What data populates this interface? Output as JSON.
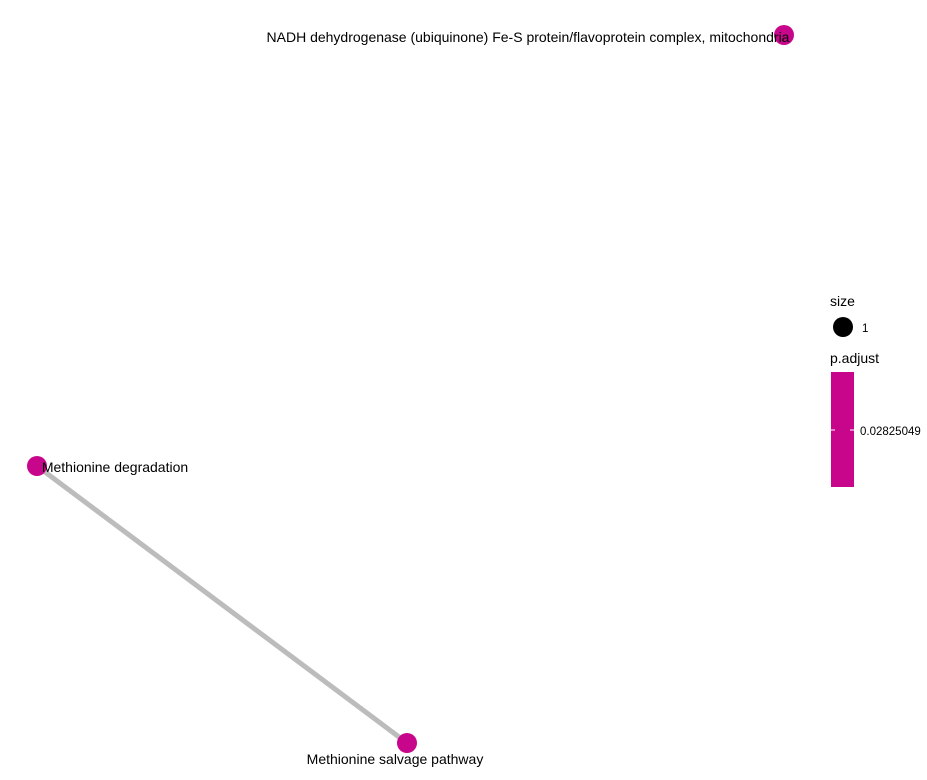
{
  "network": {
    "nodes": [
      {
        "id": "nadh",
        "label": "NADH dehydrogenase (ubiquinone) Fe-S protein/flavoprotein complex, mitochondria"
      },
      {
        "id": "met_deg",
        "label": "Methionine degradation"
      },
      {
        "id": "met_salv",
        "label": "Methionine salvage pathway"
      }
    ],
    "edges": [
      {
        "source": "met_deg",
        "target": "met_salv"
      }
    ],
    "node_color": "#c8068c",
    "edge_color": "#bcbcbc"
  },
  "legend": {
    "size": {
      "title": "size",
      "label": "1"
    },
    "padjust": {
      "title": "p.adjust",
      "value_label": "0.02825049",
      "color": "#c8068c"
    }
  }
}
